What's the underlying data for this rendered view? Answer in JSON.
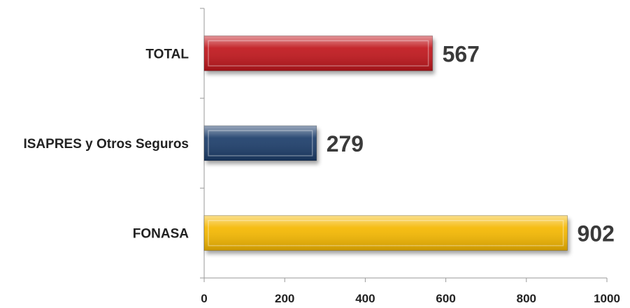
{
  "chart_data": {
    "type": "bar",
    "orientation": "horizontal",
    "categories": [
      "TOTAL",
      "ISAPRES y Otros Seguros",
      "FONASA"
    ],
    "values": [
      567,
      279,
      902
    ],
    "value_labels": [
      "567",
      "279",
      "902"
    ],
    "colors": [
      "#c0151b",
      "#1f3e6b",
      "#f5b800"
    ],
    "xlim": [
      0,
      1000
    ],
    "xticks": [
      0,
      200,
      400,
      600,
      800,
      1000
    ],
    "xtick_labels": [
      "0",
      "200",
      "400",
      "600",
      "800",
      "1000"
    ],
    "grid": false,
    "legend": "none"
  }
}
